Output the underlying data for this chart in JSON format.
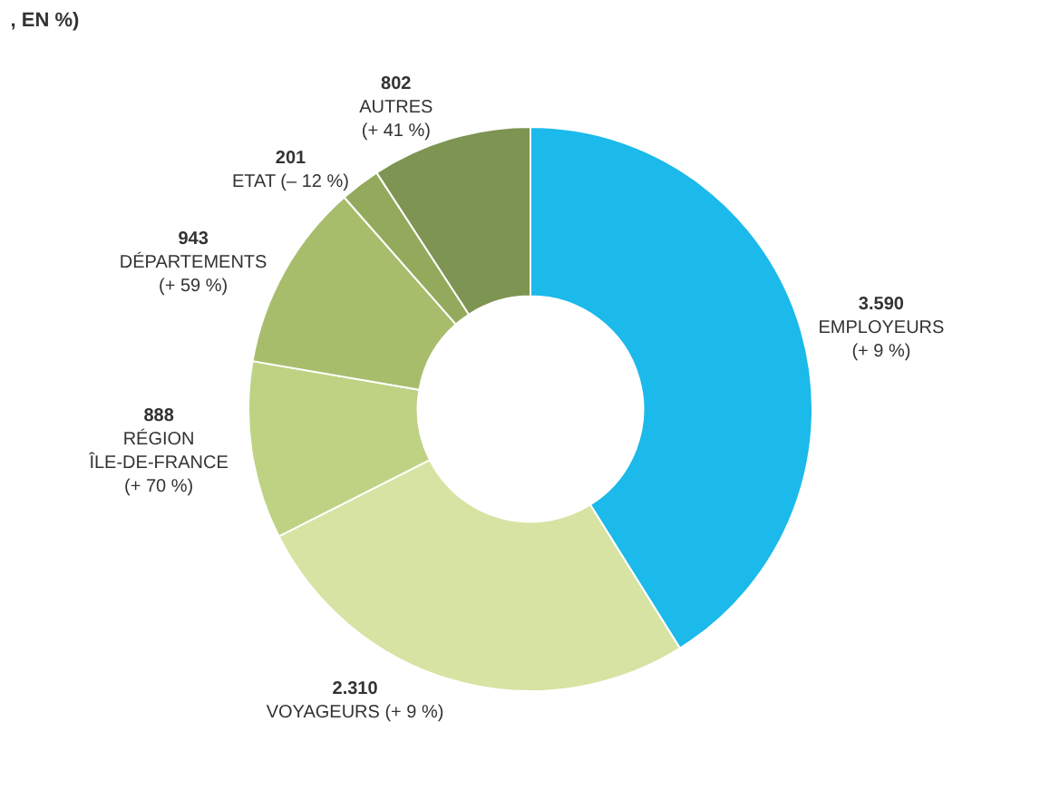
{
  "chart_data": {
    "type": "donut",
    "title": ", EN %)",
    "categories": [
      "EMPLOYEURS\n(+ 9 %)",
      "VOYAGEURS (+ 9 %)",
      "RÉGION\nÎLE-DE-FRANCE\n(+ 70 %)",
      "DÉPARTEMENTS\n(+ 59 %)",
      "ETAT (– 12 %)",
      "AUTRES\n(+ 41 %)"
    ],
    "values": [
      3590,
      2310,
      888,
      943,
      201,
      802
    ],
    "value_labels": [
      "3.590",
      "2.310",
      "888",
      "943",
      "201",
      "802"
    ],
    "colors": [
      "#1cb9eb",
      "#d6e3a3",
      "#bfd283",
      "#a8bd6c",
      "#93aa5d",
      "#7d9452"
    ],
    "legend": false
  }
}
